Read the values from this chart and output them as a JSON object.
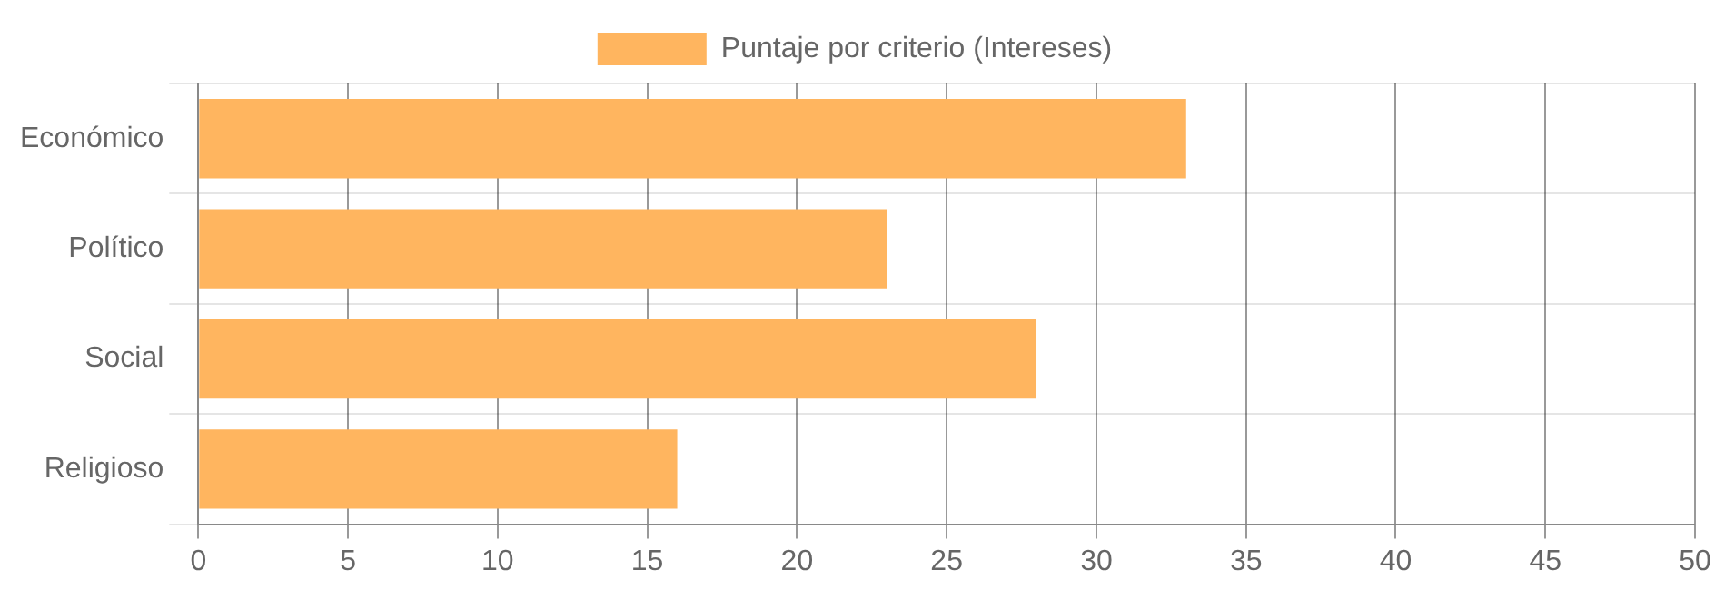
{
  "chart_data": {
    "type": "bar",
    "orientation": "horizontal",
    "categories": [
      "Económico",
      "Político",
      "Social",
      "Religioso"
    ],
    "series": [
      {
        "name": "Puntaje por criterio (Intereses)",
        "color": "#ffb55f",
        "values": [
          33,
          23,
          28,
          16
        ]
      }
    ],
    "xlim": [
      0,
      50
    ],
    "xticks": [
      0,
      5,
      10,
      15,
      20,
      25,
      30,
      35,
      40,
      45,
      50
    ],
    "grid": true,
    "legend": "top"
  }
}
